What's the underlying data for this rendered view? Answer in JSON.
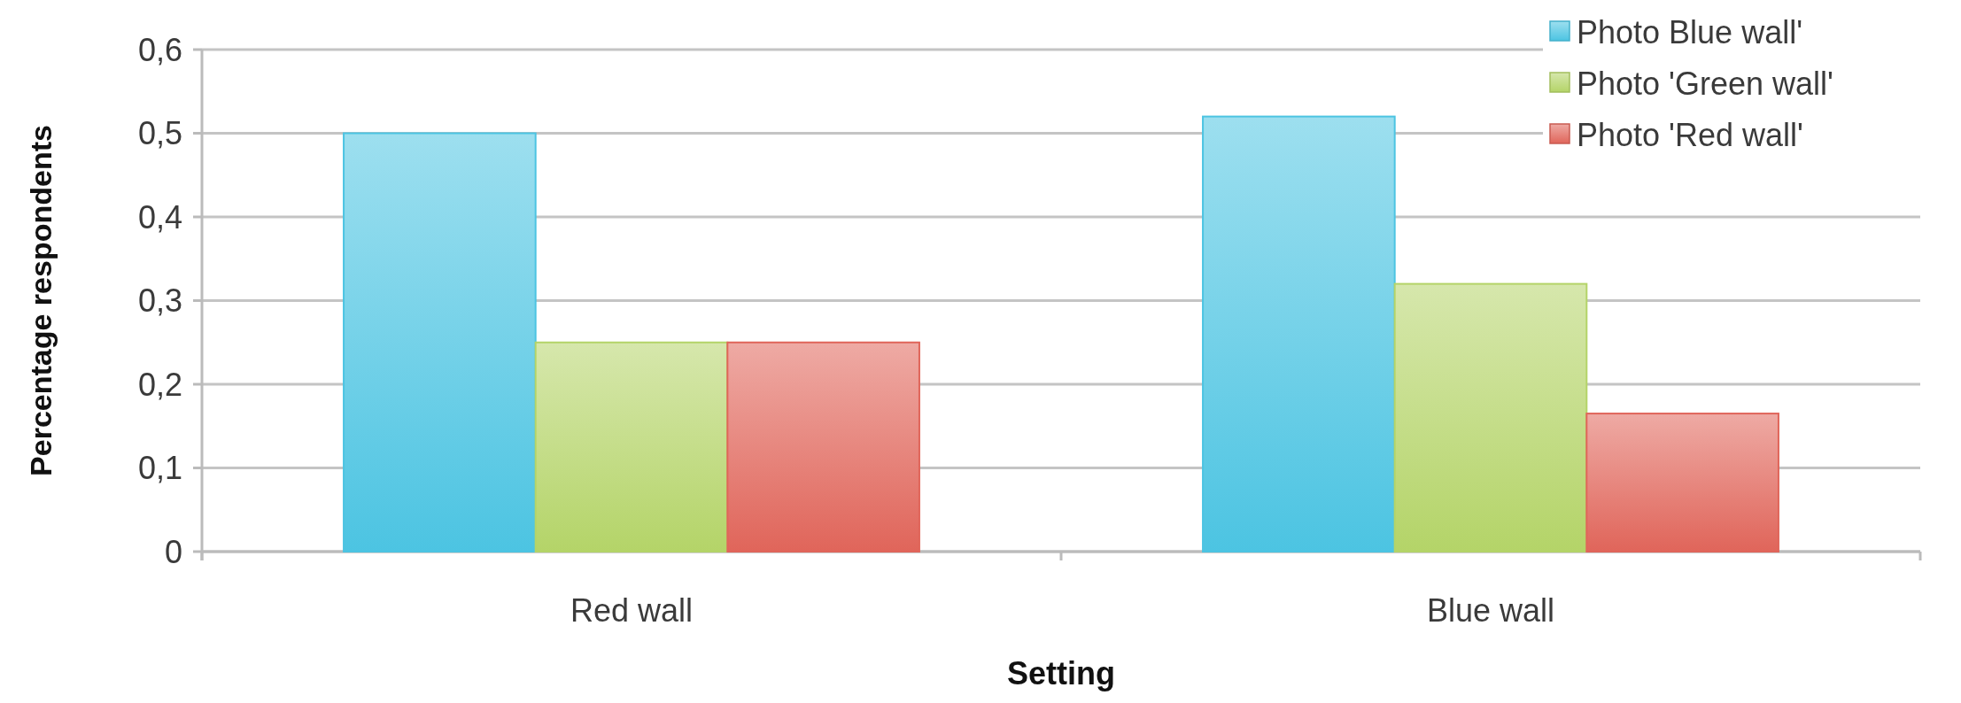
{
  "chart_data": {
    "type": "bar",
    "xlabel": "Setting",
    "ylabel": "Percentage respondents",
    "categories": [
      "Red wall",
      "Blue wall"
    ],
    "series": [
      {
        "name": "Photo Blue wall'",
        "color": "#4cc4e2",
        "values": [
          0.5,
          0.52
        ]
      },
      {
        "name": "Photo 'Green wall'",
        "color": "#b4d468",
        "values": [
          0.25,
          0.32
        ]
      },
      {
        "name": "Photo 'Red wall'",
        "color": "#e0655a",
        "values": [
          0.25,
          0.165
        ]
      }
    ],
    "ylim": [
      0,
      0.6
    ],
    "yticks": [
      {
        "value": 0,
        "label": "0"
      },
      {
        "value": 0.1,
        "label": "0,1"
      },
      {
        "value": 0.2,
        "label": "0,2"
      },
      {
        "value": 0.3,
        "label": "0,3"
      },
      {
        "value": 0.4,
        "label": "0,4"
      },
      {
        "value": 0.5,
        "label": "0,5"
      },
      {
        "value": 0.6,
        "label": "0,6"
      }
    ],
    "grid": "y",
    "legend": "top right"
  }
}
